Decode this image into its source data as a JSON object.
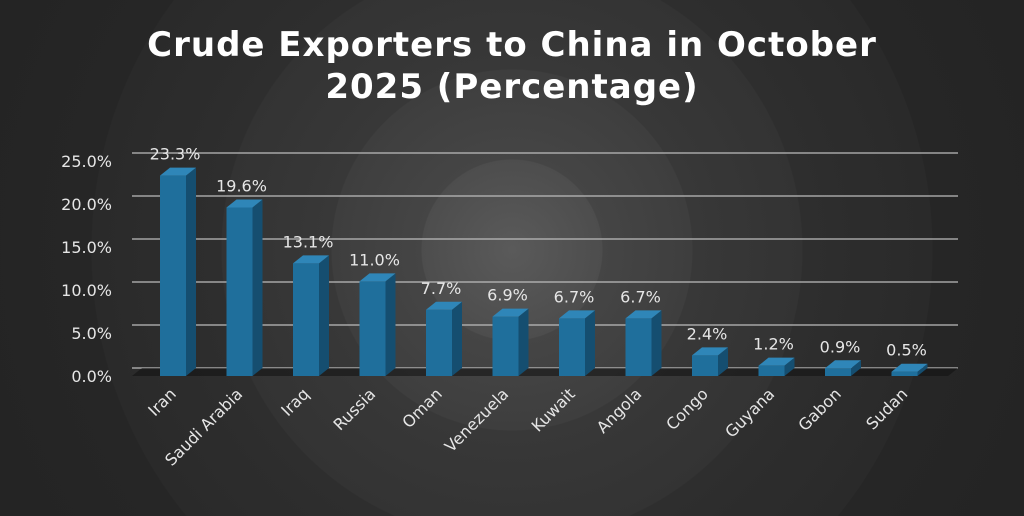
{
  "chart_data": {
    "type": "bar",
    "title_lines": [
      "Crude Exporters to China in October",
      "2025 (Percentage)"
    ],
    "categories": [
      "Iran",
      "Saudi Arabia",
      "Iraq",
      "Russia",
      "Oman",
      "Venezuela",
      "Kuwait",
      "Angola",
      "Congo",
      "Guyana",
      "Gabon",
      "Sudan"
    ],
    "values": [
      23.3,
      19.6,
      13.1,
      11.0,
      7.7,
      6.9,
      6.7,
      6.7,
      2.4,
      1.2,
      0.9,
      0.5
    ],
    "data_labels": [
      "23.3%",
      "19.6%",
      "13.1%",
      "11.0%",
      "7.7%",
      "6.9%",
      "6.7%",
      "6.7%",
      "2.4%",
      "1.2%",
      "0.9%",
      "0.5%"
    ],
    "y_ticks": [
      0,
      5,
      10,
      15,
      20,
      25
    ],
    "y_tick_labels": [
      "0.0%",
      "5.0%",
      "10.0%",
      "15.0%",
      "20.0%",
      "25.0%"
    ],
    "ylim": [
      0,
      25
    ],
    "xlabel": "",
    "ylabel": "",
    "grid": true,
    "legend": "none",
    "colors": {
      "bar_front": "#1f6f9c",
      "bar_side": "#154e70",
      "bar_top": "#2f86b8",
      "grid": "#bdbdbd",
      "text": "#e6e6e6",
      "title": "#ffffff"
    }
  }
}
